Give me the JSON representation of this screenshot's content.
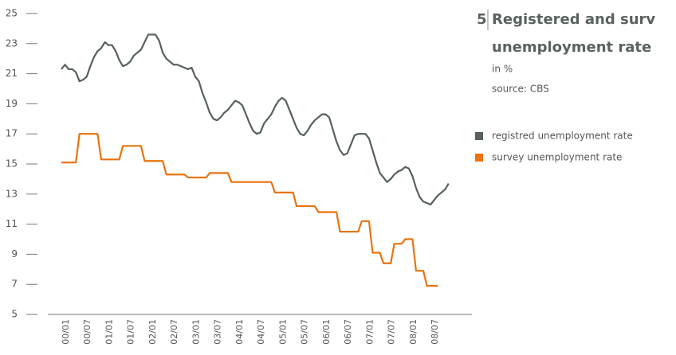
{
  "chart_data": {
    "type": "line",
    "figure_number": "5",
    "title_lines": [
      "Registered and surv",
      "unemployment rate"
    ],
    "subtitle": "in %",
    "source": "source: CBS",
    "categories": [
      "00/01",
      null,
      null,
      null,
      null,
      null,
      "00/07",
      null,
      null,
      null,
      null,
      null,
      "01/01",
      null,
      null,
      null,
      null,
      null,
      "01/07",
      null,
      null,
      null,
      null,
      null,
      "02/01",
      null,
      null,
      null,
      null,
      null,
      "02/07",
      null,
      null,
      null,
      null,
      null,
      "03/01",
      null,
      null,
      null,
      null,
      null,
      "03/07",
      null,
      null,
      null,
      null,
      null,
      "04/01",
      null,
      null,
      null,
      null,
      null,
      "04/07",
      null,
      null,
      null,
      null,
      null,
      "05/01",
      null,
      null,
      null,
      null,
      null,
      "05/07",
      null,
      null,
      null,
      null,
      null,
      "06/01",
      null,
      null,
      null,
      null,
      null,
      "06/07",
      null,
      null,
      null,
      null,
      null,
      "07/01",
      null,
      null,
      null,
      null,
      null,
      "07/07",
      null,
      null,
      null,
      null,
      null,
      "08/01",
      null,
      null,
      null,
      null,
      null,
      "08/07",
      null,
      null,
      null,
      null,
      null
    ],
    "series": [
      {
        "name": "registred unemployment rate",
        "color": "#566060",
        "values": [
          21.3,
          21.6,
          21.3,
          21.3,
          21.1,
          20.5,
          20.6,
          20.8,
          21.5,
          22.1,
          22.5,
          22.7,
          23.1,
          22.9,
          22.9,
          22.5,
          21.9,
          21.5,
          21.6,
          21.8,
          22.2,
          22.4,
          22.6,
          23.1,
          23.6,
          23.6,
          23.6,
          23.2,
          22.4,
          22.0,
          21.8,
          21.6,
          21.6,
          21.5,
          21.4,
          21.3,
          21.4,
          20.8,
          20.5,
          19.7,
          19.1,
          18.4,
          18.0,
          17.9,
          18.1,
          18.4,
          18.6,
          18.9,
          19.2,
          19.1,
          18.9,
          18.3,
          17.7,
          17.2,
          17.0,
          17.1,
          17.7,
          18.0,
          18.3,
          18.8,
          19.2,
          19.4,
          19.2,
          18.6,
          18.0,
          17.4,
          17.0,
          16.9,
          17.2,
          17.6,
          17.9,
          18.1,
          18.3,
          18.3,
          18.1,
          17.3,
          16.5,
          15.9,
          15.6,
          15.7,
          16.3,
          16.9,
          17.0,
          17.0,
          17.0,
          16.7,
          15.9,
          15.1,
          14.4,
          14.1,
          13.8,
          14.0,
          14.3,
          14.5,
          14.6,
          14.8,
          14.7,
          14.2,
          13.4,
          12.8,
          12.5,
          12.4,
          12.3,
          12.6,
          12.9,
          13.1,
          13.3,
          13.7
        ]
      },
      {
        "name": "survey unemployment rate",
        "color": "#e8730f",
        "values": [
          15.1,
          15.1,
          15.1,
          15.1,
          15.1,
          17.0,
          17.0,
          17.0,
          17.0,
          17.0,
          17.0,
          15.3,
          15.3,
          15.3,
          15.3,
          15.3,
          15.3,
          16.2,
          16.2,
          16.2,
          16.2,
          16.2,
          16.2,
          15.2,
          15.2,
          15.2,
          15.2,
          15.2,
          15.2,
          14.3,
          14.3,
          14.3,
          14.3,
          14.3,
          14.3,
          14.1,
          14.1,
          14.1,
          14.1,
          14.1,
          14.1,
          14.4,
          14.4,
          14.4,
          14.4,
          14.4,
          14.4,
          13.8,
          13.8,
          13.8,
          13.8,
          13.8,
          13.8,
          13.8,
          13.8,
          13.8,
          13.8,
          13.8,
          13.8,
          13.1,
          13.1,
          13.1,
          13.1,
          13.1,
          13.1,
          12.2,
          12.2,
          12.2,
          12.2,
          12.2,
          12.2,
          11.8,
          11.8,
          11.8,
          11.8,
          11.8,
          11.8,
          10.5,
          10.5,
          10.5,
          10.5,
          10.5,
          10.5,
          11.2,
          11.2,
          11.2,
          9.1,
          9.1,
          9.1,
          8.4,
          8.4,
          8.4,
          9.7,
          9.7,
          9.7,
          10.0,
          10.0,
          10.0,
          7.9,
          7.9,
          7.9,
          6.9,
          6.9,
          6.9,
          6.9,
          null,
          null,
          null
        ]
      }
    ],
    "ylim": [
      5,
      25
    ],
    "yticks": [
      5,
      7,
      9,
      11,
      13,
      15,
      17,
      19,
      21,
      23,
      25
    ]
  }
}
